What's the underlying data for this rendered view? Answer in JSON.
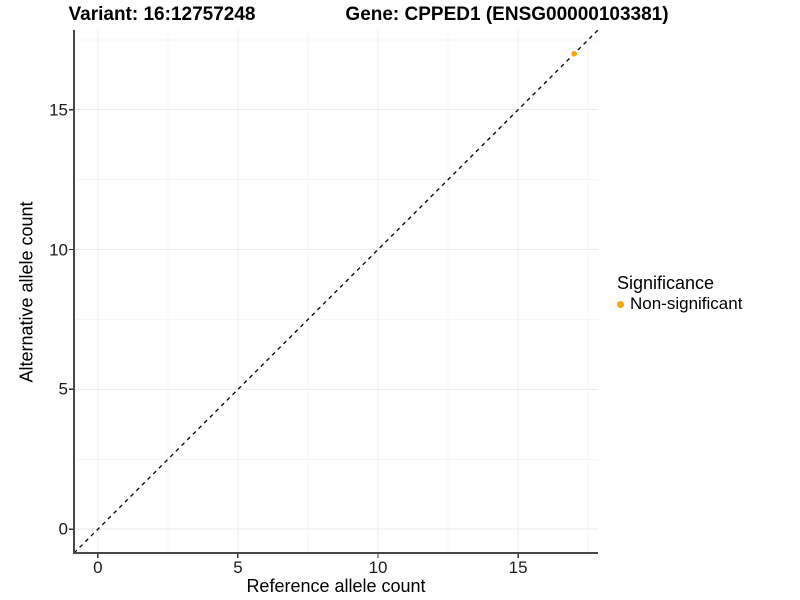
{
  "header": {
    "variant_title": "Variant: 16:12757248",
    "gene_title": "Gene: CPPED1 (ENSG00000103381)"
  },
  "chart_data": {
    "type": "scatter",
    "xlabel": "Reference allele count",
    "ylabel": "Alternative allele count",
    "xlim": [
      -0.85,
      17.85
    ],
    "ylim": [
      -0.85,
      17.85
    ],
    "x_ticks": [
      0,
      5,
      10,
      15
    ],
    "y_ticks": [
      0,
      5,
      10,
      15
    ],
    "x_minor_ticks": [
      2.5,
      7.5,
      12.5,
      17.5
    ],
    "y_minor_ticks": [
      2.5,
      7.5,
      12.5,
      17.5
    ],
    "grid": true,
    "reference_line": {
      "type": "identity",
      "slope": 1,
      "intercept": 0,
      "style": "dashed",
      "color": "#000000"
    },
    "series": [
      {
        "name": "Non-significant",
        "color": "#FFA500",
        "points": [
          {
            "x": 17,
            "y": 17
          }
        ]
      }
    ],
    "legend": {
      "title": "Significance",
      "position": "right",
      "items": [
        {
          "label": "Non-significant",
          "color": "#FFA500"
        }
      ]
    },
    "colors": {
      "axis_line": "#474747",
      "tick_mark": "#333333",
      "grid_major": "#ebebeb",
      "grid_minor": "#f5f5f5",
      "panel_background": "#ffffff"
    }
  }
}
